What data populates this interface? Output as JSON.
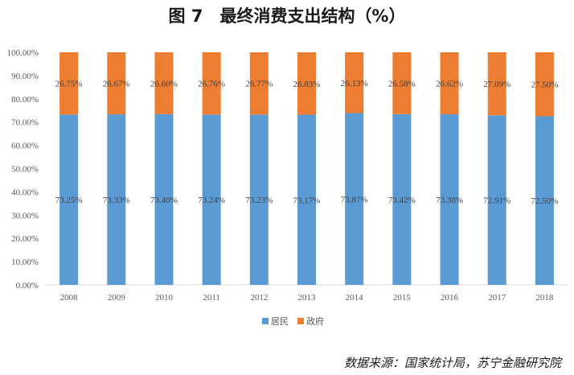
{
  "title": "图 7　最终消费支出结构（%）",
  "source_note": "数据来源：国家统计局，苏宁金融研究院",
  "colors": {
    "居民": "#5B9BD5",
    "政府": "#ED7D31",
    "axis": "#D9D9D9",
    "text": "#595959"
  },
  "chart_data": {
    "type": "bar",
    "stacked": "percent",
    "categories": [
      "2008",
      "2009",
      "2010",
      "2011",
      "2012",
      "2013",
      "2014",
      "2015",
      "2016",
      "2017",
      "2018"
    ],
    "series": [
      {
        "name": "居民",
        "values": [
          73.25,
          73.33,
          73.4,
          73.24,
          73.23,
          73.17,
          73.87,
          73.42,
          73.38,
          72.91,
          72.5
        ],
        "labels": [
          "73.25%",
          "73.33%",
          "73.40%",
          "73.24%",
          "73.23%",
          "73.17%",
          "73.87%",
          "73.42%",
          "73.38%",
          "72.91%",
          "72.50%"
        ]
      },
      {
        "name": "政府",
        "values": [
          26.75,
          26.67,
          26.6,
          26.76,
          26.77,
          26.83,
          26.13,
          26.58,
          26.62,
          27.09,
          27.5
        ],
        "labels": [
          "26.75%",
          "26.67%",
          "26.60%",
          "26.76%",
          "26.77%",
          "26.83%",
          "26.13%",
          "26.58%",
          "26.62%",
          "27.09%",
          "27.50%"
        ]
      }
    ],
    "y_ticks": [
      "0.00%",
      "10.00%",
      "20.00%",
      "30.00%",
      "40.00%",
      "50.00%",
      "60.00%",
      "70.00%",
      "80.00%",
      "90.00%",
      "100.00%"
    ],
    "ylim": [
      0,
      100
    ],
    "grid": false,
    "legend_position": "bottom"
  }
}
